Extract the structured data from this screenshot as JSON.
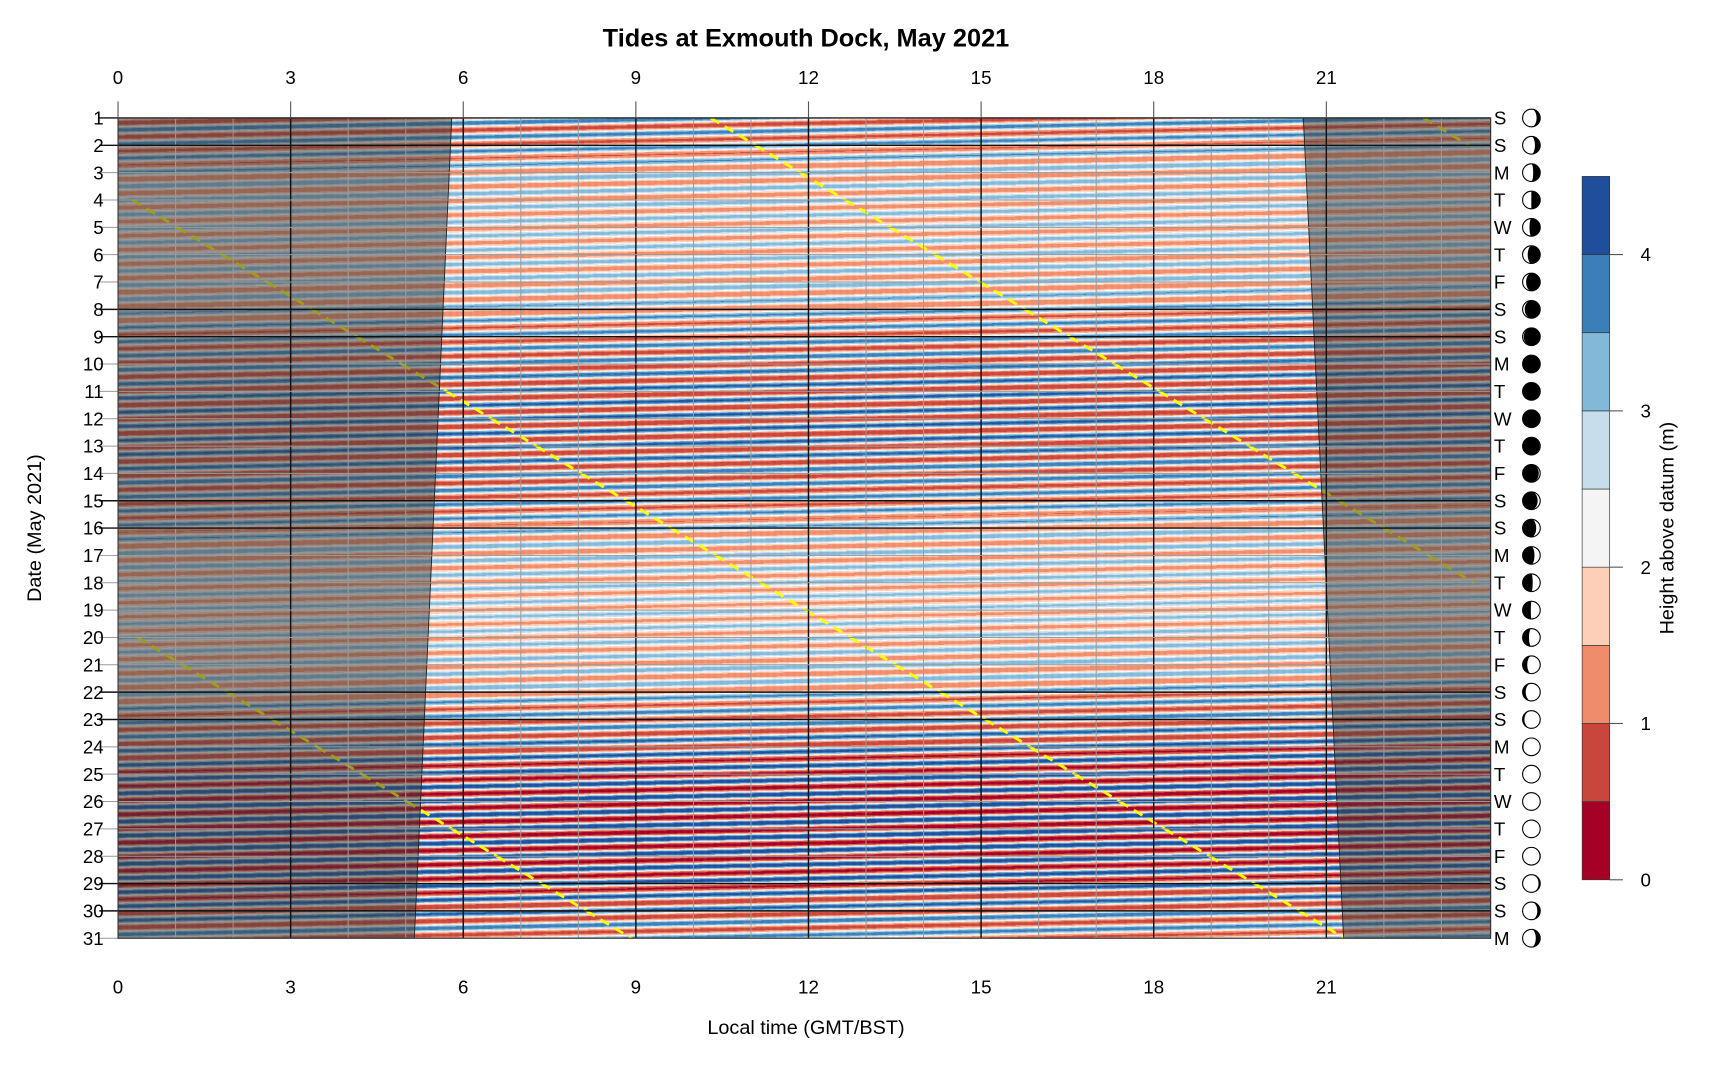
{
  "chart_data": {
    "type": "heatmap",
    "subtype": "filled-contour",
    "title": "Tides at Exmouth Dock, May 2021",
    "xlabel": "Local time (GMT/BST)",
    "ylabel": "Date (May 2021)",
    "x_range": [
      0,
      24
    ],
    "y_range": [
      1,
      31
    ],
    "x_ticks": [
      0,
      3,
      6,
      9,
      12,
      15,
      18,
      21
    ],
    "y_ticks": [
      1,
      2,
      3,
      4,
      5,
      6,
      7,
      8,
      9,
      10,
      11,
      12,
      13,
      14,
      15,
      16,
      17,
      18,
      19,
      20,
      21,
      22,
      23,
      24,
      25,
      26,
      27,
      28,
      29,
      30,
      31
    ],
    "weekday_letters": [
      "S",
      "S",
      "M",
      "T",
      "W",
      "T",
      "F",
      "S",
      "S",
      "M",
      "T",
      "W",
      "T",
      "F",
      "S",
      "S",
      "M",
      "T",
      "W",
      "T",
      "F",
      "S",
      "S",
      "M",
      "T",
      "W",
      "T",
      "F",
      "S",
      "S",
      "M"
    ],
    "weekend_days": [
      1,
      2,
      8,
      9,
      15,
      16,
      22,
      23,
      29,
      30
    ],
    "moon_age_days": [
      19.2,
      20.2,
      21.2,
      22.2,
      23.2,
      24.2,
      25.2,
      26.2,
      27.2,
      28.2,
      29.2,
      0.7,
      1.7,
      2.7,
      3.7,
      4.7,
      5.7,
      6.7,
      7.7,
      8.7,
      9.7,
      10.7,
      11.7,
      12.7,
      13.7,
      14.7,
      15.7,
      16.7,
      17.7,
      18.7,
      19.7
    ],
    "colorbar": {
      "label": "Height above datum (m)",
      "levels": [
        0,
        0.5,
        1,
        1.5,
        2,
        2.5,
        3,
        3.5,
        4,
        4.5
      ],
      "colors": [
        "#a50026",
        "#c9463d",
        "#ee8c6b",
        "#fccfb6",
        "#f4f4f4",
        "#c6ddec",
        "#82b8d8",
        "#3a7fb8",
        "#1f4e9a"
      ],
      "ticks": [
        0,
        1,
        2,
        3,
        4
      ]
    },
    "tide_model": {
      "first_high_water_hour": 10.3,
      "period_hours": 12.39,
      "mean_level_m": 2.25,
      "mean_amplitude_m": 1.45,
      "spring_neap_amplitude_m": 0.55,
      "first_spring_day": 12.5,
      "spring_neap_period_days": 14.77,
      "perigee_amplitude_m": 0.2,
      "perigee_day": 27.25,
      "anomalistic_period_days": 27.55
    },
    "daylight": {
      "sunrise_hour": {
        "day_1": 5.8,
        "day_31": 5.15
      },
      "sunset_hour": {
        "day_1": 20.6,
        "day_31": 21.3
      }
    },
    "high_water_line_color": "#ffff00",
    "night_shade_color": "#3c3c3c"
  }
}
